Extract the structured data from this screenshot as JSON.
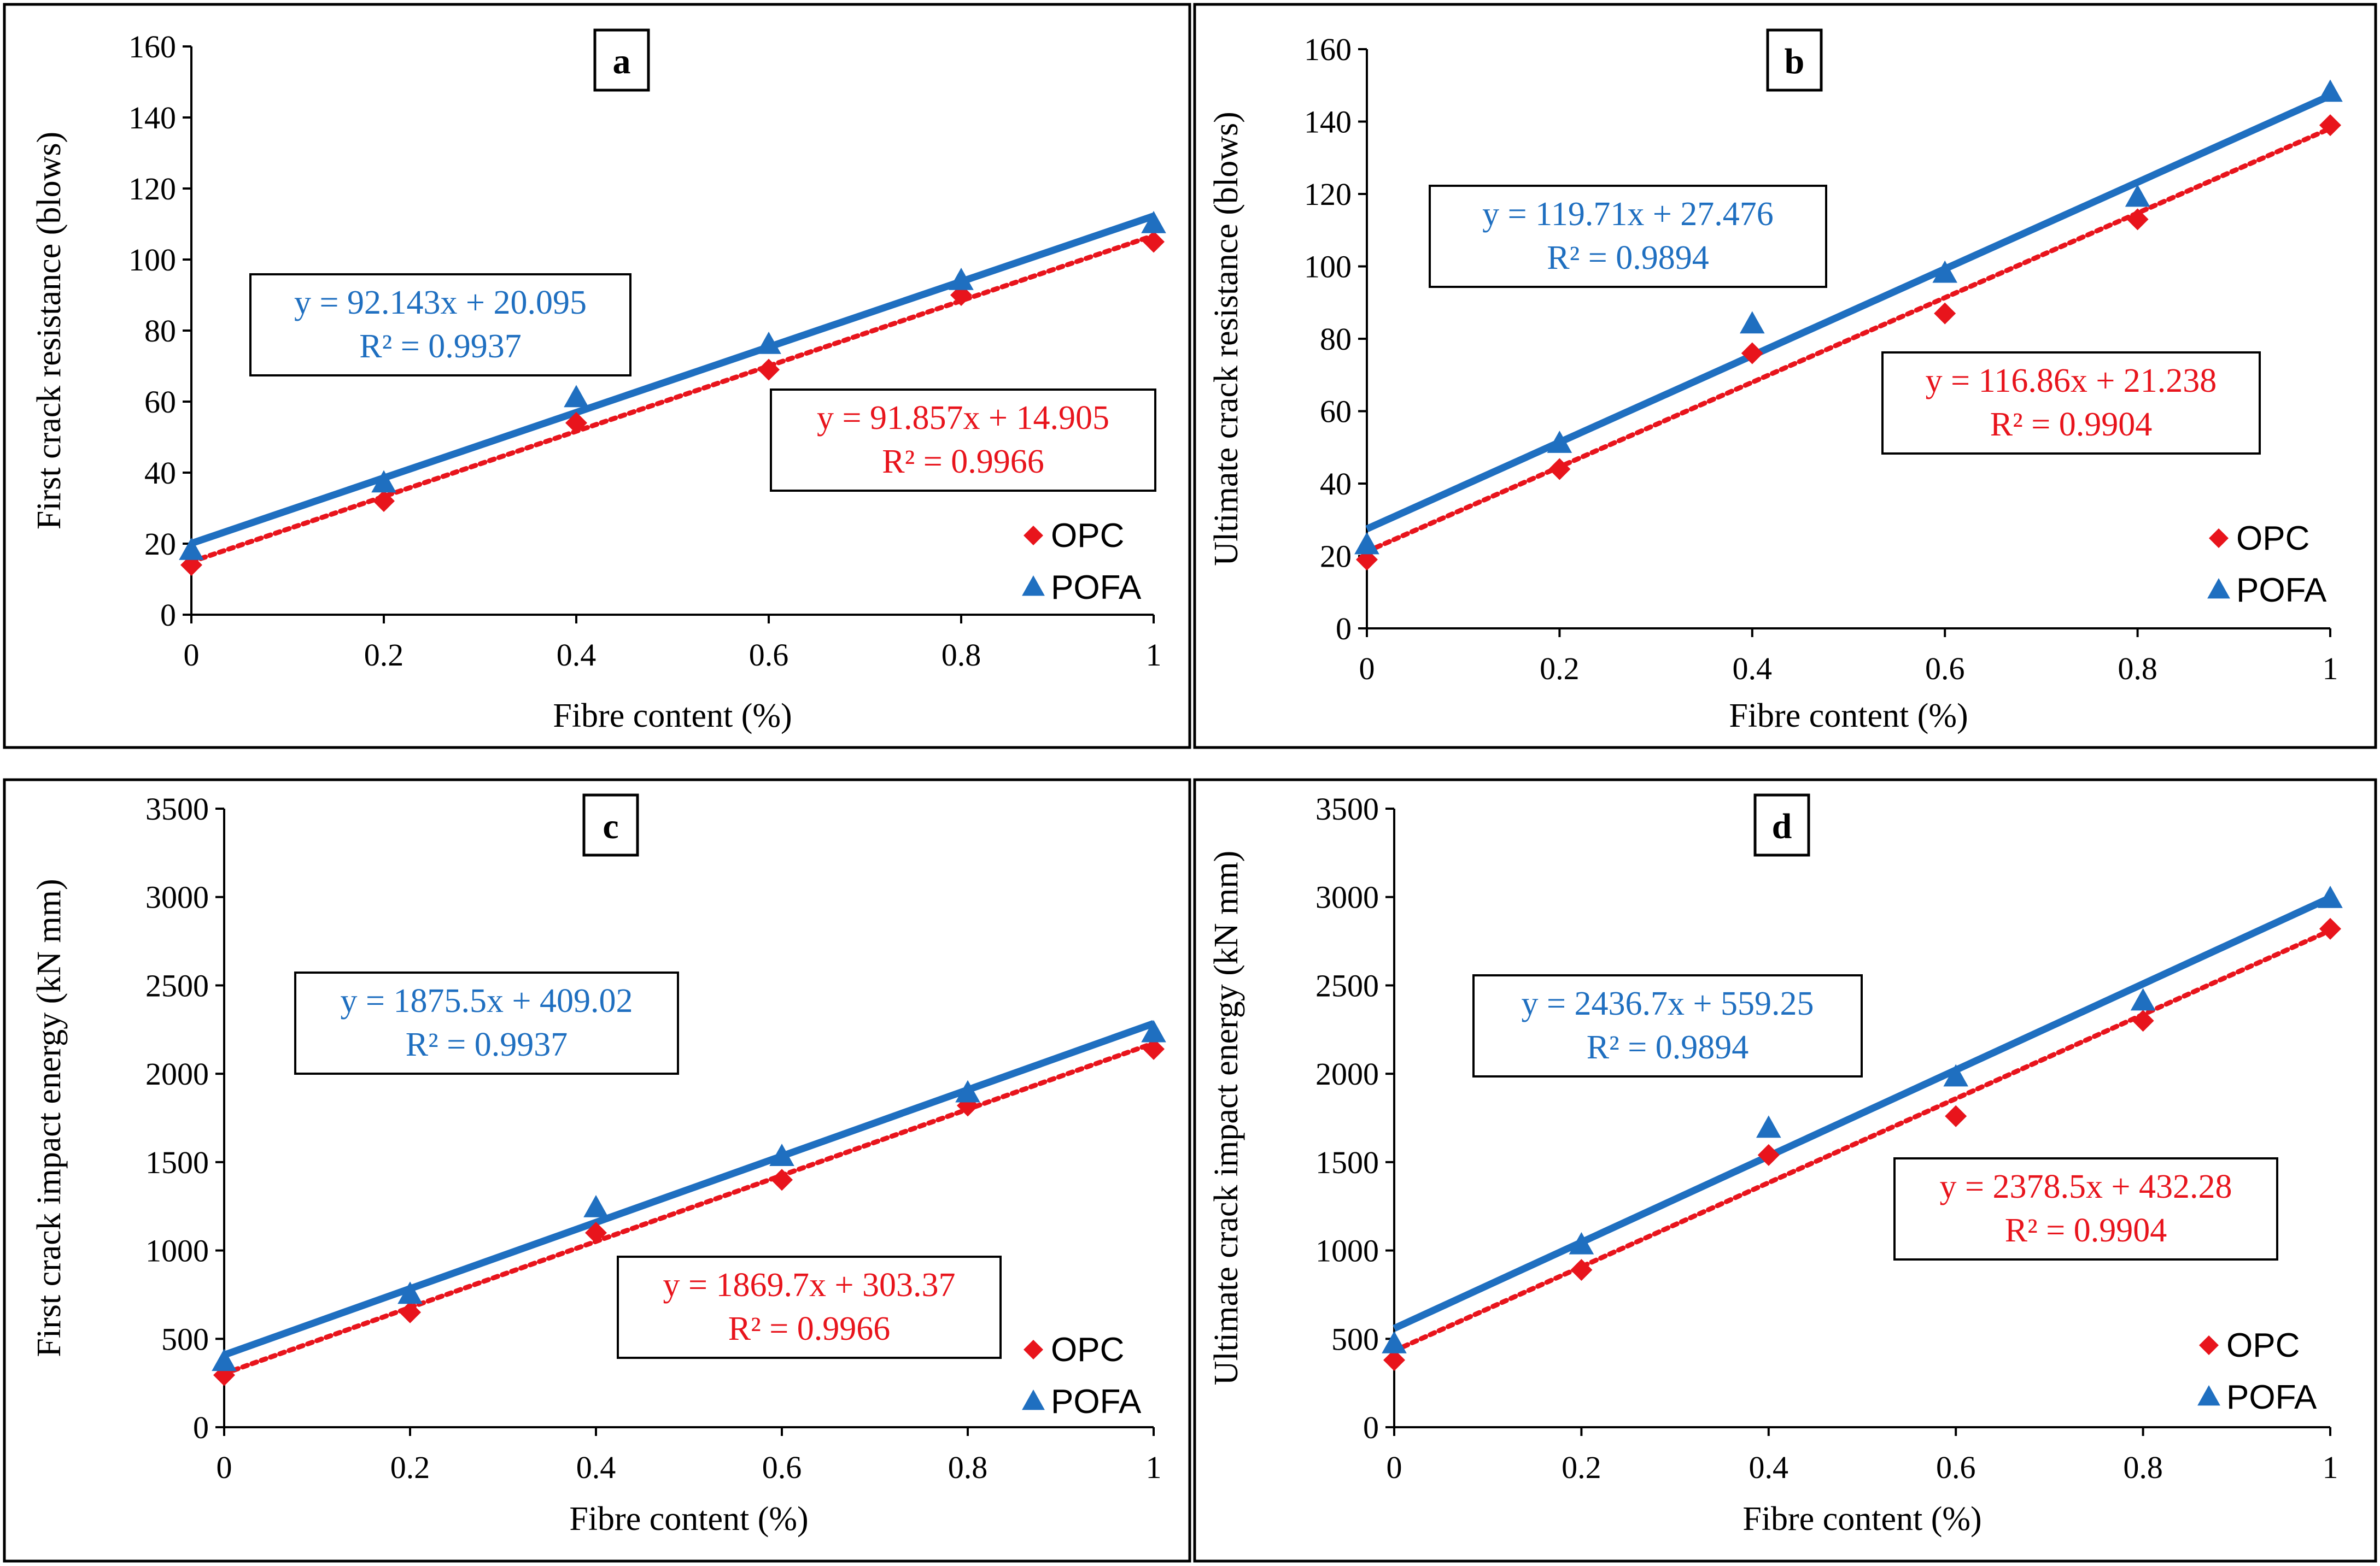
{
  "colors": {
    "opc": "#e8141c",
    "pofa": "#1f6fc0",
    "frame": "#000000"
  },
  "legend": {
    "opc": "OPC",
    "pofa": "POFA"
  },
  "chart_data": [
    {
      "type": "scatter",
      "panel": "a",
      "xlabel": "Fibre content (%)",
      "ylabel": "First crack resistance (blows)",
      "x": [
        0,
        0.2,
        0.4,
        0.6,
        0.8,
        1
      ],
      "xlim": [
        0,
        1
      ],
      "ylim": [
        0,
        160
      ],
      "xticks": [
        "0",
        "0.2",
        "0.4",
        "0.6",
        "0.8",
        "1"
      ],
      "yticks": [
        "0",
        "20",
        "40",
        "60",
        "80",
        "100",
        "120",
        "140",
        "160"
      ],
      "series": [
        {
          "name": "OPC",
          "values": [
            14,
            32,
            54,
            69,
            90,
            105
          ],
          "trend": {
            "slope": 91.857,
            "intercept": 14.905
          },
          "equation": "y = 91.857x + 14.905",
          "r2": "R² = 0.9966"
        },
        {
          "name": "POFA",
          "values": [
            18,
            37,
            61,
            76,
            94,
            110
          ],
          "trend": {
            "slope": 92.143,
            "intercept": 20.095
          },
          "equation": "y = 92.143x + 20.095",
          "r2": "R² = 0.9937"
        }
      ]
    },
    {
      "type": "scatter",
      "panel": "b",
      "xlabel": "Fibre content (%)",
      "ylabel": "Ultimate crack resistance (blows)",
      "x": [
        0,
        0.2,
        0.4,
        0.6,
        0.8,
        1
      ],
      "xlim": [
        0,
        1
      ],
      "ylim": [
        0,
        160
      ],
      "xticks": [
        "0",
        "0.2",
        "0.4",
        "0.6",
        "0.8",
        "1"
      ],
      "yticks": [
        "0",
        "20",
        "40",
        "60",
        "80",
        "100",
        "120",
        "140",
        "160"
      ],
      "series": [
        {
          "name": "OPC",
          "values": [
            19,
            44,
            76,
            87,
            113,
            139
          ],
          "trend": {
            "slope": 116.86,
            "intercept": 21.238
          },
          "equation": "y = 116.86x + 21.238",
          "r2": "R² = 0.9904"
        },
        {
          "name": "POFA",
          "values": [
            23,
            51,
            84,
            98,
            119,
            148
          ],
          "trend": {
            "slope": 119.71,
            "intercept": 27.476
          },
          "equation": "y = 119.71x + 27.476",
          "r2": "R² = 0.9894"
        }
      ]
    },
    {
      "type": "scatter",
      "panel": "c",
      "xlabel": "Fibre content (%)",
      "ylabel": "First crack impact energy (kN mm)",
      "x": [
        0,
        0.2,
        0.4,
        0.6,
        0.8,
        1
      ],
      "xlim": [
        0,
        1
      ],
      "ylim": [
        0,
        3500
      ],
      "xticks": [
        "0",
        "0.2",
        "0.4",
        "0.6",
        "0.8",
        "1"
      ],
      "yticks": [
        "0",
        "500",
        "1000",
        "1500",
        "2000",
        "2500",
        "3000",
        "3500"
      ],
      "series": [
        {
          "name": "OPC",
          "values": [
            295,
            650,
            1100,
            1400,
            1820,
            2140
          ],
          "trend": {
            "slope": 1869.7,
            "intercept": 303.37
          },
          "equation": "y = 1869.7x + 303.37",
          "r2": "R² = 0.9966"
        },
        {
          "name": "POFA",
          "values": [
            370,
            750,
            1240,
            1530,
            1890,
            2230
          ],
          "trend": {
            "slope": 1875.5,
            "intercept": 409.02
          },
          "equation": "y = 1875.5x + 409.02",
          "r2": "R² = 0.9937"
        }
      ]
    },
    {
      "type": "scatter",
      "panel": "d",
      "xlabel": "Fibre content (%)",
      "ylabel": "Ultimate crack impact energy (kN mm)",
      "x": [
        0,
        0.2,
        0.4,
        0.6,
        0.8,
        1
      ],
      "xlim": [
        0,
        1
      ],
      "ylim": [
        0,
        3500
      ],
      "xticks": [
        "0",
        "0.2",
        "0.4",
        "0.6",
        "0.8",
        "1"
      ],
      "yticks": [
        "0",
        "500",
        "1000",
        "1500",
        "2000",
        "2500",
        "3000",
        "3500"
      ],
      "series": [
        {
          "name": "OPC",
          "values": [
            380,
            890,
            1540,
            1760,
            2300,
            2820
          ],
          "trend": {
            "slope": 2378.5,
            "intercept": 432.28
          },
          "equation": "y = 2378.5x + 432.28",
          "r2": "R² = 0.9904"
        },
        {
          "name": "POFA",
          "values": [
            470,
            1030,
            1690,
            1980,
            2410,
            2990
          ],
          "trend": {
            "slope": 2436.7,
            "intercept": 559.25
          },
          "equation": "y = 2436.7x + 559.25",
          "r2": "R² = 0.9894"
        }
      ]
    }
  ]
}
